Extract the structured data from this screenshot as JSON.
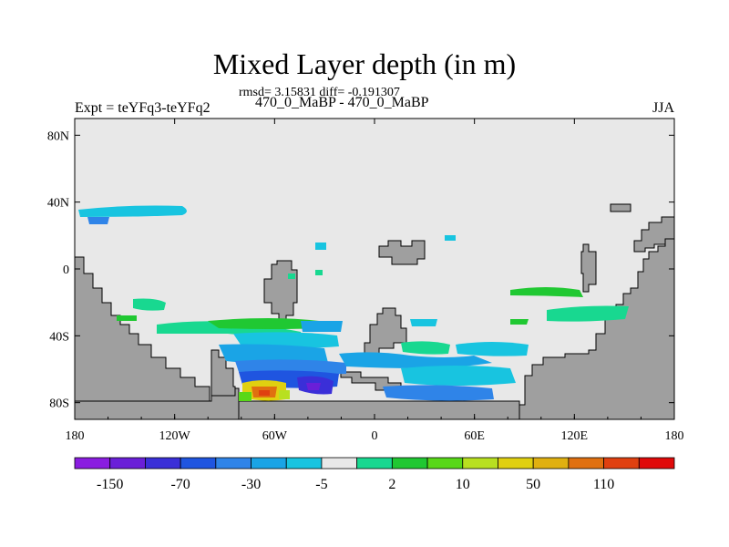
{
  "chart_data": {
    "type": "heatmap",
    "title": "Mixed Layer depth (in m)",
    "stats": "rmsd= 3.15831  diff= -0.191307",
    "left_label": "Expt = teYFq3-teYFq2",
    "center_label": "470_0_MaBP - 470_0_MaBP",
    "right_label": "JJA",
    "x_axis": {
      "range": [
        -180,
        180
      ],
      "ticks": [
        "180",
        "120W",
        "60W",
        "0",
        "60E",
        "120E",
        "180"
      ]
    },
    "y_axis": {
      "range": [
        -90,
        90
      ],
      "ticks": [
        "80N",
        "40N",
        "0",
        "40S",
        "80S"
      ]
    },
    "colorbar": {
      "levels": [
        "-150",
        "-70",
        "-30",
        "-5",
        "2",
        "10",
        "50",
        "110"
      ],
      "colors": [
        "#8a1de0",
        "#6a1fd8",
        "#3a2fd8",
        "#1f55e0",
        "#2f84e8",
        "#1aa4e6",
        "#18c4e0",
        "#e8e8e8",
        "#18d890",
        "#20c832",
        "#58d818",
        "#b8e020",
        "#e0d010",
        "#e0b010",
        "#e07010",
        "#e04010",
        "#e00a0a"
      ]
    },
    "ocean_color": "#e8e8e8",
    "land_color": "#9f9f9f"
  }
}
